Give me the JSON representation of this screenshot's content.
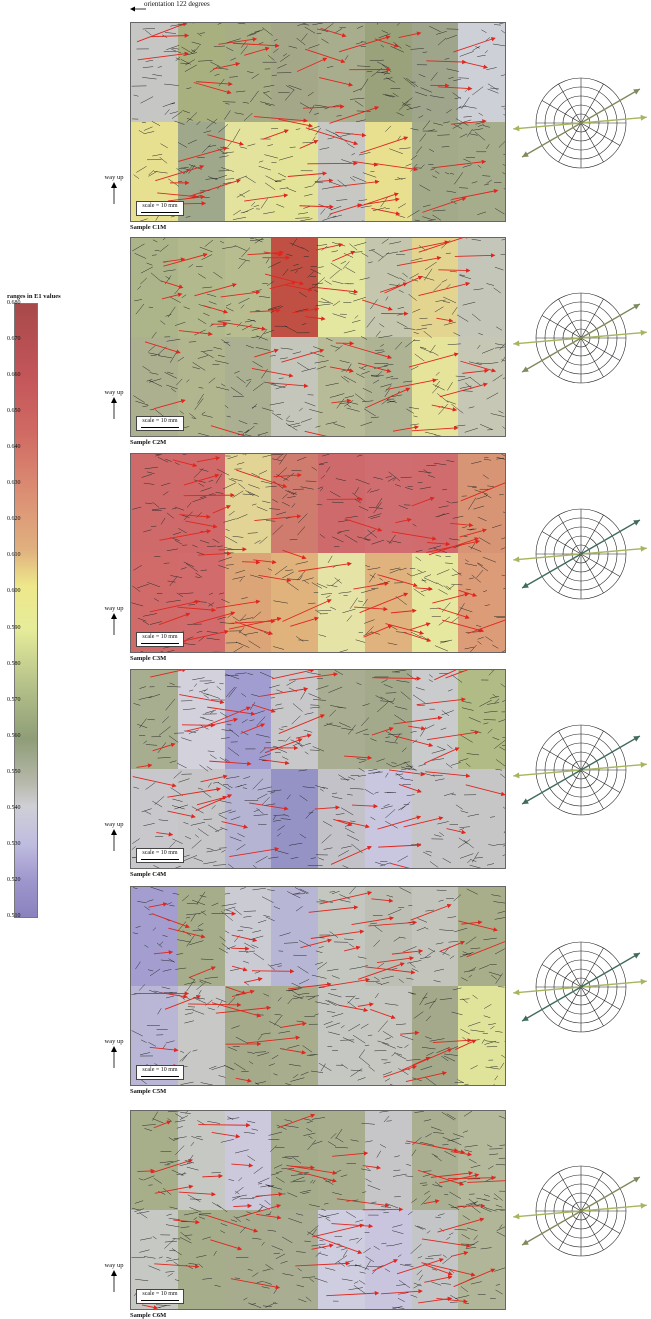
{
  "header": {
    "orientation_label": "orientation 122 degrees"
  },
  "legend": {
    "title": "ranges in E1 values",
    "ticks": [
      "0.680",
      "0.670",
      "0.660",
      "0.650",
      "0.640",
      "0.630",
      "0.620",
      "0.610",
      "0.600",
      "0.590",
      "0.580",
      "0.570",
      "0.560",
      "0.550",
      "0.540",
      "0.530",
      "0.520",
      "0.510"
    ],
    "range": [
      0.51,
      0.68
    ]
  },
  "common": {
    "way_up": "way up",
    "scale": "scale = 10 mm"
  },
  "colors": {
    "line_work": "#2a2a2a",
    "vectors": "#e0261e",
    "rose_grid": "#222222",
    "rose_arrow_light": "#a7b55e",
    "rose_arrow_mid": "#7d8a5c",
    "rose_arrow_dark": "#3f6a5f"
  },
  "samples": [
    {
      "name": "Sample C1M",
      "grid": [
        [
          "#c6c6c5",
          "#a8b07f",
          "#a7ad85",
          "#a5a888",
          "#a8ad8d",
          "#9aa27b",
          "#9ea58a",
          "#cdd0d7"
        ],
        [
          "#e8e091",
          "#9fa88a",
          "#e4e39e",
          "#e3e497",
          "#c7c8c3",
          "#e8e08e",
          "#a3aa89",
          "#a6ad8c"
        ]
      ],
      "rose_arrows": [
        "light",
        "light",
        "mid",
        "mid"
      ]
    },
    {
      "name": "Sample C2M",
      "grid": [
        [
          "#acb58a",
          "#b2b98c",
          "#b7bd8f",
          "#c05043",
          "#e4e7a0",
          "#c4c7ad",
          "#e3d48f",
          "#c4c6b9"
        ],
        [
          "#acb08f",
          "#b2b68f",
          "#aab091",
          "#c4c6bb",
          "#b7bb97",
          "#aeb493",
          "#e6e49a",
          "#c6c8b5"
        ]
      ],
      "rose_arrows": [
        "light",
        "light",
        "mid",
        "mid"
      ]
    },
    {
      "name": "Sample C3M",
      "grid": [
        [
          "#cf6a6a",
          "#d06a6a",
          "#e2d494",
          "#cf7b6e",
          "#cf6a6c",
          "#d06d70",
          "#d06c6e",
          "#d89575"
        ],
        [
          "#d16b6a",
          "#d26c6c",
          "#dca578",
          "#e0b37d",
          "#e5e3a6",
          "#e0b37e",
          "#e7e89f",
          "#dc9c78"
        ]
      ],
      "rose_arrows": [
        "light",
        "light",
        "dark",
        "dark"
      ]
    },
    {
      "name": "Sample C4M",
      "grid": [
        [
          "#a7ad8f",
          "#d2d1dc",
          "#a29dd0",
          "#c8c8ca",
          "#a9ad91",
          "#a3aa8c",
          "#cacbcd",
          "#b0bb85"
        ],
        [
          "#c8c8cc",
          "#c6c6c9",
          "#b6b4d3",
          "#9592c6",
          "#c2c2c8",
          "#c9c6e0",
          "#c6c6c9",
          "#c6c6c7"
        ]
      ],
      "rose_arrows": [
        "light",
        "light",
        "dark",
        "dark"
      ]
    },
    {
      "name": "Sample C5M",
      "grid": [
        [
          "#a39dd0",
          "#a6ad8a",
          "#cbcbd4",
          "#b8b6d5",
          "#c4c6c0",
          "#bdbfb4",
          "#c3c5bc",
          "#a7ae89"
        ],
        [
          "#b9b6d6",
          "#c8c9c6",
          "#a4aa8a",
          "#a7ad8d",
          "#c5c7c2",
          "#c6c7c0",
          "#a3a98a",
          "#dfe49a"
        ]
      ],
      "rose_arrows": [
        "light",
        "light",
        "dark",
        "dark"
      ]
    },
    {
      "name": "Sample C6M",
      "grid": [
        [
          "#a7ae8a",
          "#c6c8c4",
          "#ccc9dd",
          "#a5ac8b",
          "#a8ae8d",
          "#c6c6c9",
          "#a9af90",
          "#b3b99a"
        ],
        [
          "#c6c8c3",
          "#a6ad8b",
          "#a6ac8d",
          "#a9ad92",
          "#cfcde0",
          "#c9c5df",
          "#c4c5c6",
          "#b0b697"
        ]
      ],
      "rose_arrows": [
        "light",
        "light",
        "mid",
        "mid"
      ]
    }
  ]
}
